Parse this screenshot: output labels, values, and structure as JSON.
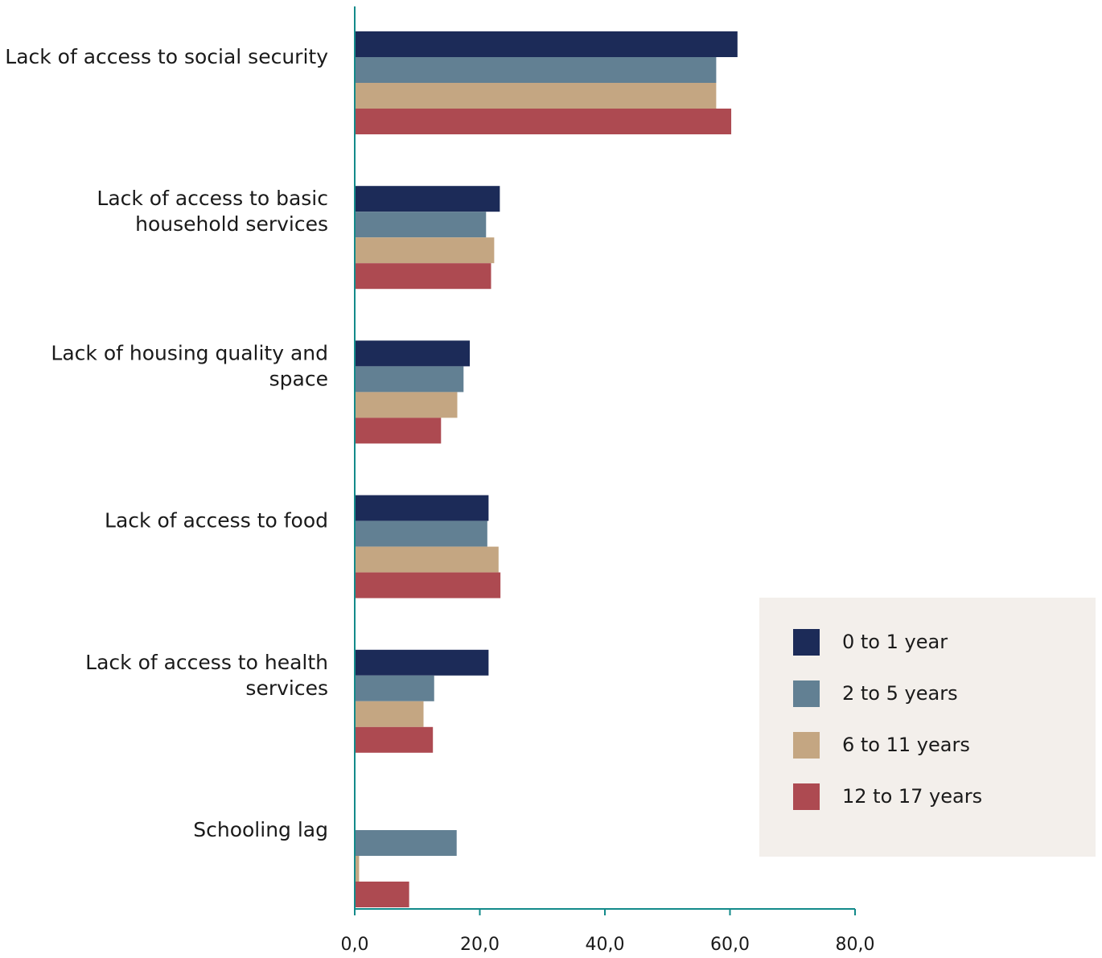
{
  "colors": {
    "axis": "#138a8a",
    "series": [
      "#1c2b58",
      "#628093",
      "#c4a682",
      "#ad4a51"
    ]
  },
  "chart_data": {
    "type": "bar",
    "orientation": "horizontal",
    "categories": [
      [
        "Lack of access to social security"
      ],
      [
        "Lack of access to basic",
        "household services"
      ],
      [
        "Lack of housing quality and",
        "space"
      ],
      [
        "Lack of access to food"
      ],
      [
        "Lack of access to health",
        "services"
      ],
      [
        "Schooling lag"
      ]
    ],
    "series": [
      {
        "name": "0 to 1 year",
        "values": [
          61.2,
          23.2,
          18.4,
          21.4,
          21.4,
          null
        ]
      },
      {
        "name": "2 to 5 years",
        "values": [
          57.8,
          21.0,
          17.4,
          21.2,
          12.7,
          16.3
        ]
      },
      {
        "name": "6 to 11 years",
        "values": [
          57.8,
          22.3,
          16.4,
          23.0,
          11.0,
          0.7
        ]
      },
      {
        "name": "12 to 17 years",
        "values": [
          60.2,
          21.8,
          13.8,
          23.3,
          12.5,
          8.7
        ]
      }
    ],
    "xlim": [
      0,
      80
    ],
    "xticks": [
      "0,0",
      "20,0",
      "40,0",
      "60,0",
      "80,0"
    ],
    "xtick_values": [
      0,
      20,
      40,
      60,
      80
    ],
    "legend_position": "lower-right",
    "grid": false,
    "title": "",
    "xlabel": "",
    "ylabel": ""
  }
}
